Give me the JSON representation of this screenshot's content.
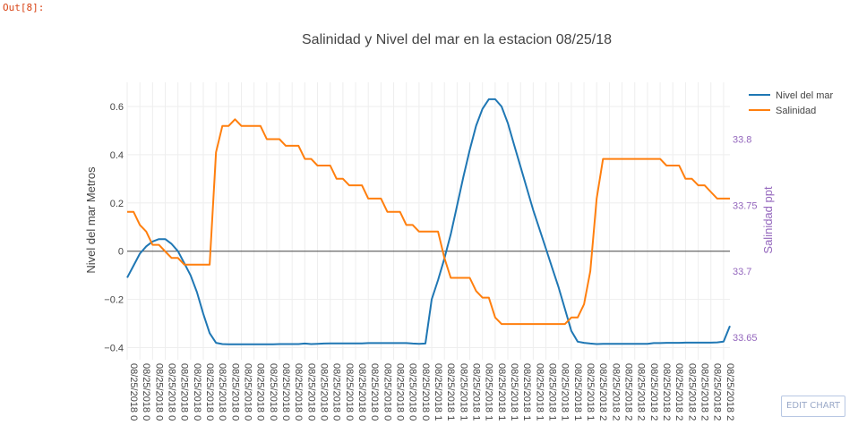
{
  "cell": {
    "prompt": "Out[8]:"
  },
  "edit_chart_label": "EDIT CHART",
  "colors": {
    "nivel": "#1f77b4",
    "salinidad": "#ff7f0e",
    "right_axis": "#9467bd",
    "grid": "#eeeeee",
    "zero": "#444444"
  },
  "chart_data": {
    "type": "line",
    "title": "Salinidad y Nivel del mar en la estacion 08/25/18",
    "ylabel": "Nivel del mar Metros",
    "y2label": "Salinidad ppt",
    "ylim": [
      -0.45,
      0.7
    ],
    "y2lim": [
      33.633,
      33.843
    ],
    "yticks": [
      -0.4,
      -0.2,
      0,
      0.2,
      0.4,
      0.6
    ],
    "ytick_labels": [
      "−0.4",
      "−0.2",
      "0",
      "0.2",
      "0.4",
      "0.6"
    ],
    "y2ticks": [
      33.65,
      33.7,
      33.75,
      33.8
    ],
    "y2tick_labels": [
      "33.65",
      "33.7",
      "33.75",
      "33.8"
    ],
    "x_count": 96,
    "xtick_labels": [
      "08/25/2018 0",
      "08/25/2018 0",
      "08/25/2018 0",
      "08/25/2018 0",
      "08/25/2018 0",
      "08/25/2018 0",
      "08/25/2018 0",
      "08/25/2018 0",
      "08/25/2018 0",
      "08/25/2018 0",
      "08/25/2018 0",
      "08/25/2018 0",
      "08/25/2018 0",
      "08/25/2018 0",
      "08/25/2018 0",
      "08/25/2018 0",
      "08/25/2018 0",
      "08/25/2018 0",
      "08/25/2018 0",
      "08/25/2018 0",
      "08/25/2018 0",
      "08/25/2018 0",
      "08/25/2018 0",
      "08/25/2018 0",
      "08/25/2018 1",
      "08/25/2018 1",
      "08/25/2018 1",
      "08/25/2018 1",
      "08/25/2018 1",
      "08/25/2018 1",
      "08/25/2018 1",
      "08/25/2018 1",
      "08/25/2018 1",
      "08/25/2018 1",
      "08/25/2018 1",
      "08/25/2018 1",
      "08/25/2018 1",
      "08/25/2018 2",
      "08/25/2018 2",
      "08/25/2018 2",
      "08/25/2018 2",
      "08/25/2018 2",
      "08/25/2018 2",
      "08/25/2018 2",
      "08/25/2018 2",
      "08/25/2018 2",
      "08/25/2018 2",
      "08/25/2018 2"
    ],
    "grid": true,
    "legend_position": "top-right",
    "series": [
      {
        "name": "Nivel del mar",
        "axis": "y",
        "color": "#1f77b4",
        "values": [
          -0.11,
          -0.06,
          -0.01,
          0.02,
          0.04,
          0.05,
          0.05,
          0.03,
          0.0,
          -0.05,
          -0.1,
          -0.17,
          -0.26,
          -0.34,
          -0.38,
          -0.385,
          -0.386,
          -0.386,
          -0.386,
          -0.386,
          -0.386,
          -0.386,
          -0.386,
          -0.386,
          -0.385,
          -0.385,
          -0.385,
          -0.385,
          -0.383,
          -0.385,
          -0.384,
          -0.383,
          -0.382,
          -0.382,
          -0.382,
          -0.382,
          -0.382,
          -0.382,
          -0.381,
          -0.381,
          -0.381,
          -0.381,
          -0.381,
          -0.381,
          -0.381,
          -0.383,
          -0.384,
          -0.383,
          -0.2,
          -0.12,
          -0.03,
          0.07,
          0.19,
          0.31,
          0.42,
          0.52,
          0.59,
          0.63,
          0.63,
          0.6,
          0.53,
          0.44,
          0.35,
          0.26,
          0.17,
          0.09,
          0.01,
          -0.07,
          -0.15,
          -0.24,
          -0.33,
          -0.375,
          -0.38,
          -0.383,
          -0.385,
          -0.384,
          -0.384,
          -0.384,
          -0.384,
          -0.384,
          -0.384,
          -0.384,
          -0.384,
          -0.381,
          -0.381,
          -0.38,
          -0.38,
          -0.38,
          -0.379,
          -0.379,
          -0.379,
          -0.379,
          -0.379,
          -0.378,
          -0.375,
          -0.31
        ]
      },
      {
        "name": "Salinidad",
        "axis": "y2",
        "color": "#ff7f0e",
        "values": [
          33.745,
          33.745,
          33.735,
          33.73,
          33.72,
          33.72,
          33.715,
          33.71,
          33.71,
          33.705,
          33.705,
          33.705,
          33.705,
          33.705,
          33.79,
          33.81,
          33.81,
          33.815,
          33.81,
          33.81,
          33.81,
          33.81,
          33.8,
          33.8,
          33.8,
          33.795,
          33.795,
          33.795,
          33.785,
          33.785,
          33.78,
          33.78,
          33.78,
          33.77,
          33.77,
          33.765,
          33.765,
          33.765,
          33.755,
          33.755,
          33.755,
          33.745,
          33.745,
          33.745,
          33.735,
          33.735,
          33.73,
          33.73,
          33.73,
          33.73,
          33.71,
          33.695,
          33.695,
          33.695,
          33.695,
          33.685,
          33.68,
          33.68,
          33.665,
          33.66,
          33.66,
          33.66,
          33.66,
          33.66,
          33.66,
          33.66,
          33.66,
          33.66,
          33.66,
          33.66,
          33.665,
          33.665,
          33.675,
          33.7,
          33.755,
          33.785,
          33.785,
          33.785,
          33.785,
          33.785,
          33.785,
          33.785,
          33.785,
          33.785,
          33.785,
          33.78,
          33.78,
          33.78,
          33.77,
          33.77,
          33.765,
          33.765,
          33.76,
          33.755,
          33.755,
          33.755
        ]
      }
    ]
  }
}
